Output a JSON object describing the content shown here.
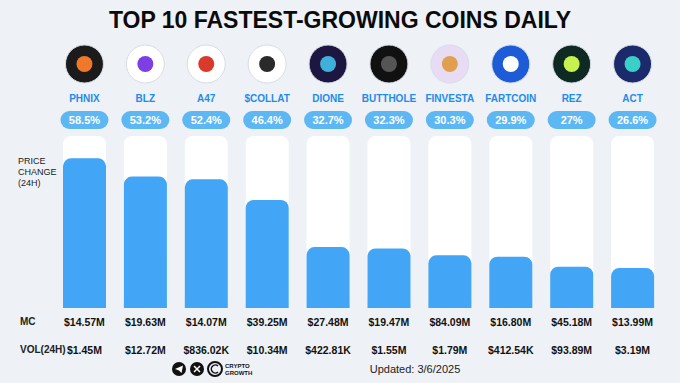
{
  "chart_data": {
    "type": "bar",
    "title": "TOP 10 FASTEST-GROWING COINS DAILY",
    "y_label": "PRICE CHANGE (24H)",
    "categories": [
      "PHNIX",
      "BLZ",
      "A47",
      "$COLLAT",
      "DIONE",
      "BUTTHOLE",
      "FINVESTA",
      "FARTCOIN",
      "REZ",
      "ACT"
    ],
    "values": [
      58.5,
      53.2,
      52.4,
      46.4,
      32.7,
      32.3,
      30.3,
      29.9,
      27,
      26.6
    ],
    "value_labels": [
      "58.5%",
      "53.2%",
      "52.4%",
      "46.4%",
      "32.7%",
      "32.3%",
      "30.3%",
      "29.9%",
      "27%",
      "26.6%"
    ],
    "data_labels": true,
    "color": "#42a5f5",
    "ylim": [
      15,
      65
    ],
    "yticks": [],
    "tick_labels": "x",
    "grid": false,
    "market_cap": {
      "label": "MC",
      "values": [
        14570000,
        19630000,
        14070000,
        39250000,
        27480000,
        19470000,
        84090000,
        16800000,
        45180000,
        13990000
      ],
      "value_labels": [
        "$14.57M",
        "$19.63M",
        "$14.07M",
        "$39.25M",
        "$27.48M",
        "$19.47M",
        "$84.09M",
        "$16.80M",
        "$45.18M",
        "$13.99M"
      ]
    },
    "volume_24h": {
      "label": "VOL(24H)",
      "values": [
        1450000,
        12720000,
        836020,
        10340000,
        422810,
        1550000,
        1790000,
        412540,
        93890000,
        3190000
      ],
      "value_labels": [
        "$1.45M",
        "$12.72M",
        "$836.02K",
        "$10.34M",
        "$422.81K",
        "$1.55M",
        "$1.79M",
        "$412.54K",
        "$93.89M",
        "$3.19M"
      ]
    },
    "footer": "Updated: 3/6/2025",
    "brand": "CRYPTO GROWTH"
  }
}
